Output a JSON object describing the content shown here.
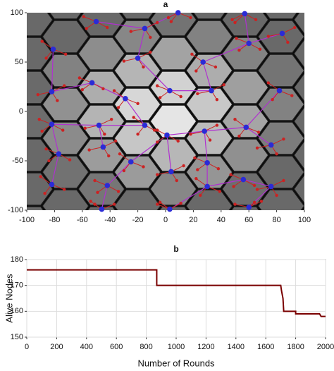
{
  "chart_data": [
    {
      "type": "scatter",
      "title": "a",
      "xlim": [
        -100,
        100
      ],
      "xticks": [
        -100,
        -80,
        -60,
        -40,
        -20,
        0,
        20,
        40,
        60,
        80,
        100
      ],
      "ylim": [
        -100,
        100
      ],
      "yticks": [
        -100,
        -50,
        0,
        50,
        100
      ],
      "series": [
        {
          "color": "#2b2bd6",
          "x": [
            -50,
            -15,
            9,
            57,
            84,
            -81,
            -53,
            -20,
            27,
            60,
            -82,
            -29,
            3,
            33,
            82,
            -82,
            -48,
            -15,
            1,
            28,
            58,
            -77,
            -45,
            -25,
            30,
            76,
            -82,
            -42,
            4,
            30,
            56,
            76,
            -46,
            3,
            60
          ],
          "y": [
            91,
            84,
            100,
            99,
            79,
            63,
            29,
            54,
            50,
            69,
            20,
            13,
            21,
            21,
            21,
            -13,
            -14,
            -14,
            -24,
            -20,
            -16,
            -43,
            -36,
            -51,
            -52,
            -34,
            -74,
            -75,
            -61,
            -76,
            -69,
            -76,
            -99,
            -99,
            -97
          ]
        },
        {
          "color": "#cc2222",
          "x": [
            -59,
            -57,
            -42,
            -6,
            -25,
            -11,
            2,
            18,
            4,
            48,
            50,
            65,
            93,
            74,
            88,
            -89,
            -72,
            -86,
            -62,
            -60,
            -45,
            -11,
            -30,
            -16,
            19,
            36,
            22,
            51,
            53,
            68,
            -73,
            -92,
            -78,
            -37,
            -20,
            -34,
            -6,
            -4,
            11,
            42,
            23,
            37,
            74,
            91,
            77,
            -91,
            -89,
            -74,
            -39,
            -58,
            -44,
            -23,
            -6,
            -20,
            -8,
            -6,
            9,
            37,
            18,
            32,
            50,
            67,
            53,
            -86,
            -84,
            -69,
            -36,
            -55,
            -41,
            -33,
            -16,
            -30,
            21,
            23,
            38,
            85,
            66,
            80,
            -90,
            -73,
            -87,
            -51,
            -49,
            -34,
            13,
            -6,
            8,
            22,
            39,
            25,
            47,
            49,
            64,
            85,
            66,
            80,
            -54,
            -37,
            -51,
            -6,
            -4,
            11,
            69,
            50,
            64
          ],
          "y": [
            96,
            84,
            85,
            90,
            81,
            75,
            95,
            95,
            91,
            93,
            90,
            93,
            85,
            76,
            70,
            71,
            58,
            54,
            34,
            22,
            23,
            60,
            51,
            45,
            58,
            45,
            41,
            74,
            62,
            63,
            26,
            17,
            11,
            21,
            8,
            4,
            26,
            14,
            15,
            27,
            18,
            12,
            29,
            16,
            12,
            -8,
            -20,
            -19,
            -8,
            -17,
            -23,
            -6,
            -19,
            -23,
            -19,
            -31,
            -30,
            -14,
            -23,
            -29,
            -8,
            -21,
            -25,
            -38,
            -50,
            -49,
            -30,
            -39,
            -45,
            -43,
            -56,
            -60,
            -47,
            -59,
            -58,
            -28,
            -37,
            -43,
            -66,
            -79,
            -83,
            -70,
            -82,
            -81,
            -55,
            -64,
            -70,
            -68,
            -81,
            -85,
            -64,
            -76,
            -75,
            -70,
            -79,
            -85,
            -91,
            -94,
            -94,
            -94,
            -92,
            -93,
            -91,
            -94,
            -92
          ]
        }
      ]
    },
    {
      "type": "line",
      "title": "b",
      "xlabel": "Number of Rounds",
      "ylabel": "Alive Nodes",
      "xlim": [
        0,
        2000
      ],
      "xticks": [
        0,
        200,
        400,
        600,
        800,
        1000,
        1200,
        1400,
        1600,
        1800,
        2000
      ],
      "ylim": [
        150,
        180
      ],
      "yticks": [
        150,
        160,
        170,
        180
      ],
      "grid": true,
      "series": [
        {
          "color": "#7a0000",
          "x": [
            0,
            870,
            870,
            1700,
            1705,
            1715,
            1720,
            1800,
            1800,
            1960,
            1970,
            2000
          ],
          "values": [
            176,
            176,
            170,
            170,
            168,
            165,
            160,
            160,
            159,
            159,
            158,
            158
          ]
        }
      ]
    }
  ]
}
